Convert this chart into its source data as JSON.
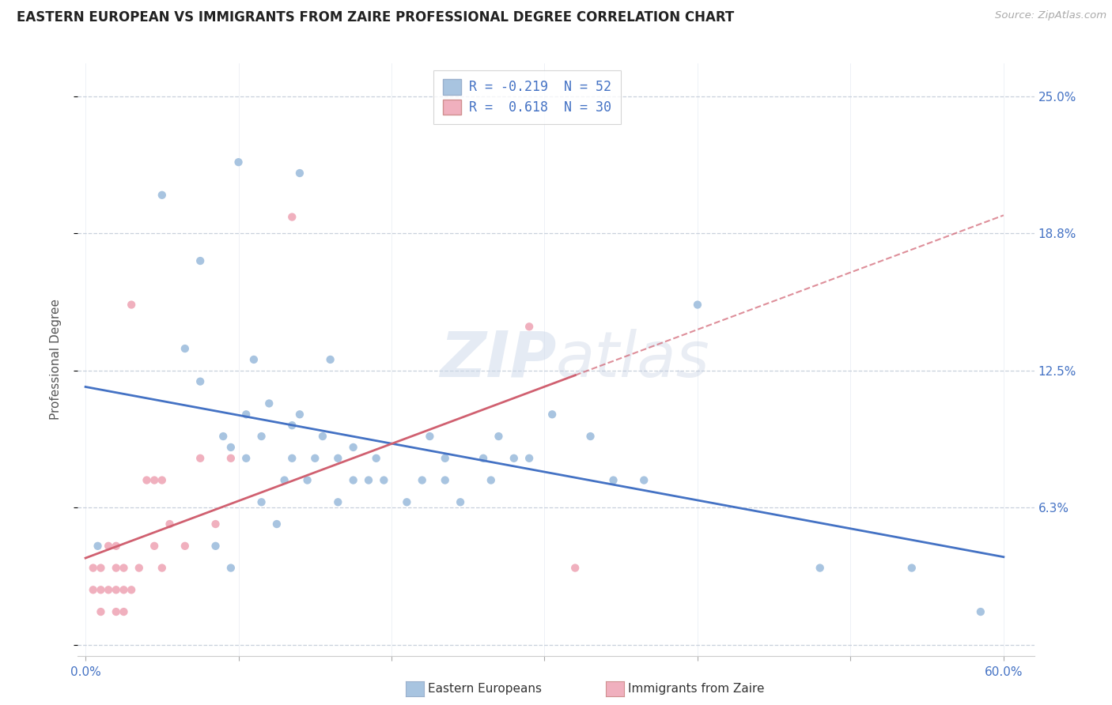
{
  "title": "EASTERN EUROPEAN VS IMMIGRANTS FROM ZAIRE PROFESSIONAL DEGREE CORRELATION CHART",
  "source": "Source: ZipAtlas.com",
  "ylabel": "Professional Degree",
  "xlim": [
    -0.005,
    0.62
  ],
  "ylim": [
    -0.005,
    0.265
  ],
  "yticks": [
    0.0,
    0.0625,
    0.125,
    0.1875,
    0.25
  ],
  "ytick_labels": [
    "",
    "6.3%",
    "12.5%",
    "18.8%",
    "25.0%"
  ],
  "xtick_labels_shown": [
    "0.0%",
    "60.0%"
  ],
  "xtick_positions_shown": [
    0.0,
    0.6
  ],
  "xticks_minor": [
    0.0,
    0.1,
    0.2,
    0.3,
    0.4,
    0.5,
    0.6
  ],
  "R_eastern": -0.219,
  "N_eastern": 52,
  "R_zaire": 0.618,
  "N_zaire": 30,
  "color_eastern": "#a8c4e0",
  "color_zaire": "#f0b0be",
  "line_color_eastern": "#4472c4",
  "line_color_zaire": "#d06070",
  "grid_color": "#c8d0dc",
  "eastern_x": [
    0.008,
    0.05,
    0.065,
    0.075,
    0.075,
    0.085,
    0.09,
    0.095,
    0.095,
    0.1,
    0.105,
    0.105,
    0.11,
    0.115,
    0.115,
    0.12,
    0.125,
    0.13,
    0.135,
    0.135,
    0.14,
    0.14,
    0.145,
    0.15,
    0.155,
    0.16,
    0.165,
    0.165,
    0.175,
    0.175,
    0.185,
    0.19,
    0.195,
    0.21,
    0.22,
    0.225,
    0.235,
    0.235,
    0.245,
    0.26,
    0.265,
    0.27,
    0.28,
    0.29,
    0.305,
    0.33,
    0.345,
    0.365,
    0.4,
    0.48,
    0.54,
    0.585
  ],
  "eastern_y": [
    0.045,
    0.205,
    0.135,
    0.12,
    0.175,
    0.045,
    0.095,
    0.035,
    0.09,
    0.22,
    0.085,
    0.105,
    0.13,
    0.065,
    0.095,
    0.11,
    0.055,
    0.075,
    0.085,
    0.1,
    0.105,
    0.215,
    0.075,
    0.085,
    0.095,
    0.13,
    0.065,
    0.085,
    0.075,
    0.09,
    0.075,
    0.085,
    0.075,
    0.065,
    0.075,
    0.095,
    0.075,
    0.085,
    0.065,
    0.085,
    0.075,
    0.095,
    0.085,
    0.085,
    0.105,
    0.095,
    0.075,
    0.075,
    0.155,
    0.035,
    0.035,
    0.015
  ],
  "zaire_x": [
    0.005,
    0.005,
    0.01,
    0.01,
    0.01,
    0.015,
    0.015,
    0.02,
    0.02,
    0.02,
    0.02,
    0.025,
    0.025,
    0.025,
    0.03,
    0.03,
    0.035,
    0.04,
    0.045,
    0.045,
    0.05,
    0.05,
    0.055,
    0.065,
    0.075,
    0.085,
    0.095,
    0.135,
    0.29,
    0.32
  ],
  "zaire_y": [
    0.025,
    0.035,
    0.015,
    0.025,
    0.035,
    0.025,
    0.045,
    0.015,
    0.025,
    0.035,
    0.045,
    0.015,
    0.025,
    0.035,
    0.025,
    0.155,
    0.035,
    0.075,
    0.045,
    0.075,
    0.035,
    0.075,
    0.055,
    0.045,
    0.085,
    0.055,
    0.085,
    0.195,
    0.145,
    0.035
  ],
  "legend_R_eastern": "-0.219",
  "legend_N_eastern": "52",
  "legend_R_zaire": "0.618",
  "legend_N_zaire": "30"
}
